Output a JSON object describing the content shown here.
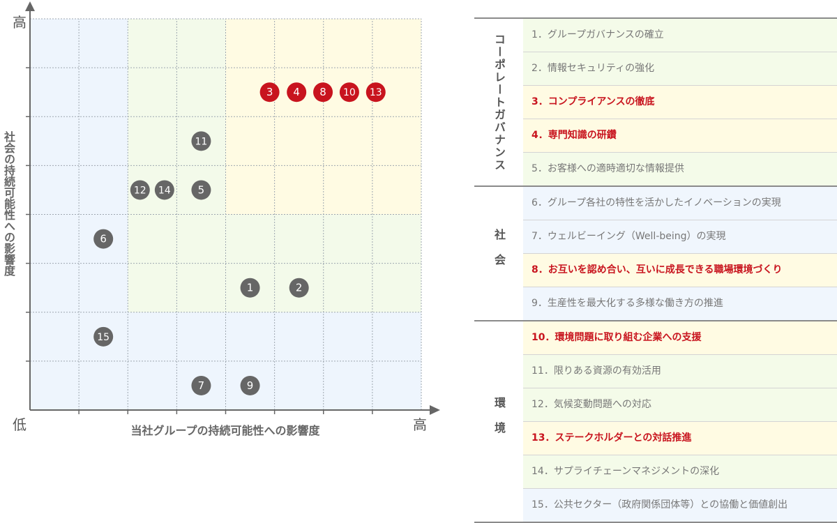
{
  "chart_data": {
    "type": "scatter",
    "title": "",
    "xlabel": "当社グループの持続可能性への影響度",
    "ylabel": "社会の持続可能性への影響度",
    "x_high_label": "高",
    "y_high_label": "高",
    "origin_label": "低",
    "xlim": [
      0,
      8
    ],
    "ylim": [
      0,
      8
    ],
    "grid": true,
    "points": [
      {
        "label": "1",
        "x": 4.5,
        "y": 2.5,
        "highlight": false
      },
      {
        "label": "2",
        "x": 5.5,
        "y": 2.5,
        "highlight": false
      },
      {
        "label": "3",
        "x": 4.9,
        "y": 6.5,
        "highlight": true
      },
      {
        "label": "4",
        "x": 5.45,
        "y": 6.5,
        "highlight": true
      },
      {
        "label": "8",
        "x": 5.99,
        "y": 6.5,
        "highlight": true
      },
      {
        "label": "10",
        "x": 6.53,
        "y": 6.5,
        "highlight": true
      },
      {
        "label": "13",
        "x": 7.07,
        "y": 6.5,
        "highlight": true
      },
      {
        "label": "11",
        "x": 3.5,
        "y": 5.5,
        "highlight": false
      },
      {
        "label": "12",
        "x": 2.25,
        "y": 4.5,
        "highlight": false
      },
      {
        "label": "14",
        "x": 2.75,
        "y": 4.5,
        "highlight": false
      },
      {
        "label": "5",
        "x": 3.5,
        "y": 4.5,
        "highlight": false
      },
      {
        "label": "6",
        "x": 1.5,
        "y": 3.5,
        "highlight": false
      },
      {
        "label": "15",
        "x": 1.5,
        "y": 1.5,
        "highlight": false
      },
      {
        "label": "7",
        "x": 3.5,
        "y": 0.5,
        "highlight": false
      },
      {
        "label": "9",
        "x": 4.5,
        "y": 0.5,
        "highlight": false
      }
    ],
    "zones": [
      {
        "name": "low",
        "color": "#eef5fd"
      },
      {
        "name": "mid",
        "color": "#f3faea"
      },
      {
        "name": "high",
        "color": "#fffbe3"
      }
    ],
    "colors": {
      "highlight": "#c8141e",
      "normal": "#666666",
      "axis": "#666666",
      "grid": "#9ea7b0"
    }
  },
  "legend": {
    "groups": [
      {
        "label": "コーポレートガバナンス",
        "items": [
          {
            "text": "1．グループガバナンスの確立",
            "highlight": false,
            "bg": "g"
          },
          {
            "text": "2．情報セキュリティの強化",
            "highlight": false,
            "bg": "g"
          },
          {
            "text": "3．コンプライアンスの徹底",
            "highlight": true,
            "bg": "y"
          },
          {
            "text": "4．専門知識の研鑽",
            "highlight": true,
            "bg": "y"
          },
          {
            "text": "5．お客様への適時適切な情報提供",
            "highlight": false,
            "bg": "g"
          }
        ]
      },
      {
        "label": "社会",
        "items": [
          {
            "text": "6．グループ各社の特性を活かしたイノベーションの実現",
            "highlight": false,
            "bg": "b"
          },
          {
            "text": "7．ウェルビーイング（Well-being）の実現",
            "highlight": false,
            "bg": "b"
          },
          {
            "text": "8．お互いを認め合い、互いに成長できる職場環境づくり",
            "highlight": true,
            "bg": "y"
          },
          {
            "text": "9．生産性を最大化する多様な働き方の推進",
            "highlight": false,
            "bg": "b"
          }
        ]
      },
      {
        "label": "環境",
        "items": [
          {
            "text": "10．環境問題に取り組む企業への支援",
            "highlight": true,
            "bg": "y"
          },
          {
            "text": "11．限りある資源の有効活用",
            "highlight": false,
            "bg": "g"
          },
          {
            "text": "12．気候変動問題への対応",
            "highlight": false,
            "bg": "g"
          },
          {
            "text": "13．ステークホルダーとの対話推進",
            "highlight": true,
            "bg": "y"
          },
          {
            "text": "14．サプライチェーンマネジメントの深化",
            "highlight": false,
            "bg": "g"
          },
          {
            "text": "15．公共セクター（政府関係団体等）との協働と価値創出",
            "highlight": false,
            "bg": "b"
          }
        ]
      }
    ]
  }
}
